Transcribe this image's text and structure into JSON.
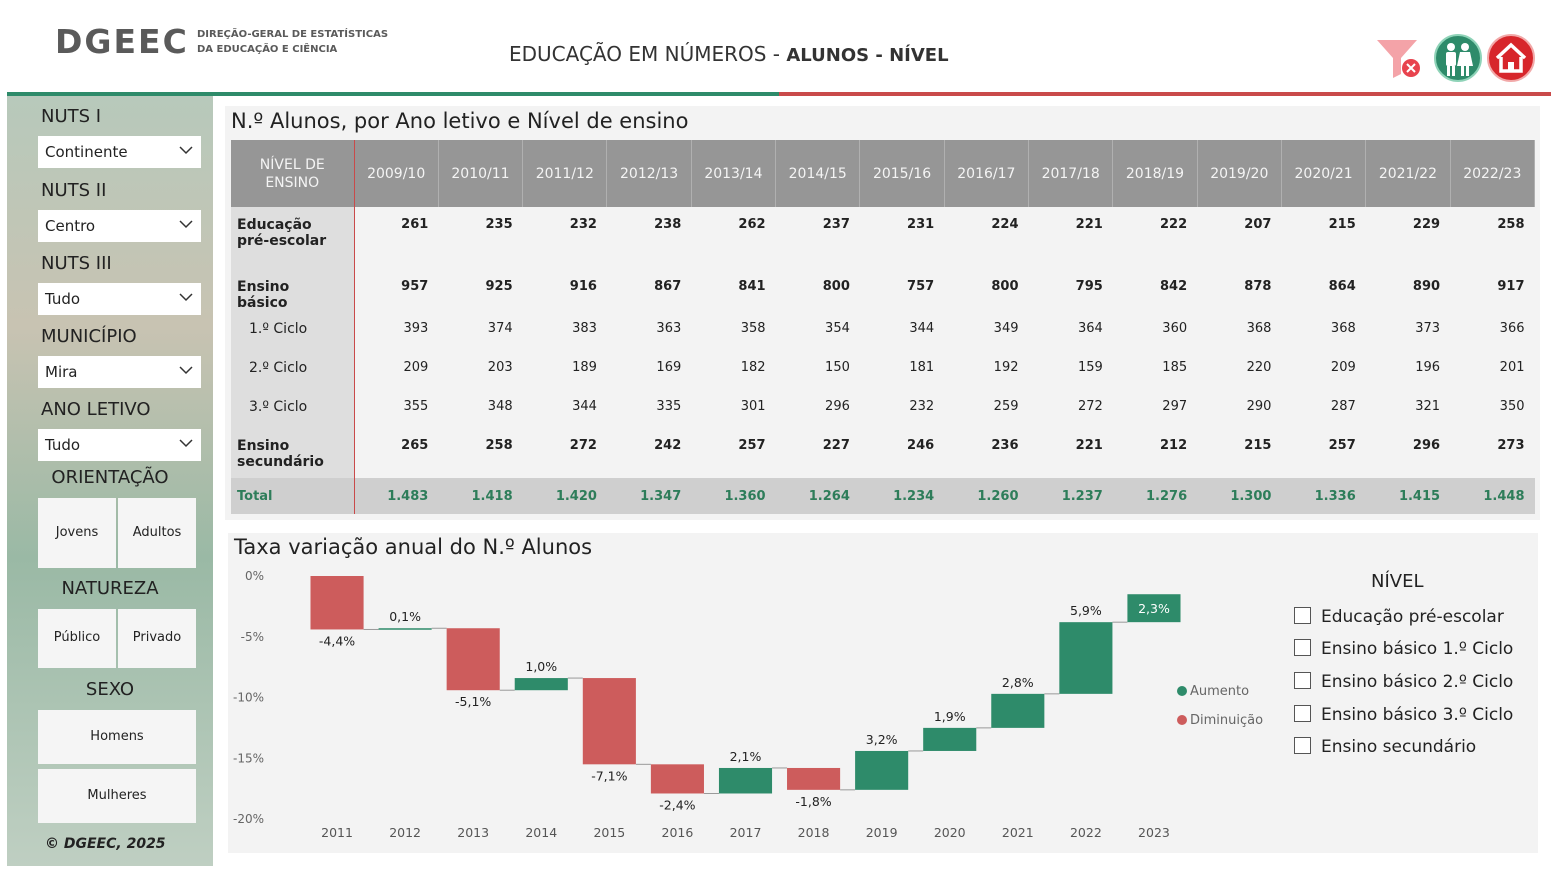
{
  "header": {
    "logo": "DGEEC",
    "logo_sub_1": "DIREÇÃO-GERAL DE ESTATÍSTICAS",
    "logo_sub_2": "DA EDUCAÇÃO E CIÊNCIA",
    "title_main": "EDUCAÇÃO EM NÚMEROS - ",
    "title_rest": "ALUNOS - NÍVEL"
  },
  "sidebar": {
    "nuts1_label": "NUTS I",
    "nuts1_value": "Continente",
    "nuts2_label": "NUTS II",
    "nuts2_value": "Centro",
    "nuts3_label": "NUTS III",
    "nuts3_value": "Tudo",
    "municipio_label": "MUNICÍPIO",
    "municipio_value": "Mira",
    "ano_label": "ANO LETIVO",
    "ano_value": "Tudo",
    "orientacao_label": "ORIENTAÇÃO",
    "orientacao_options": [
      "Jovens",
      "Adultos"
    ],
    "natureza_label": "NATUREZA",
    "natureza_options": [
      "Público",
      "Privado"
    ],
    "sexo_label": "SEXO",
    "sexo_options": [
      "Homens",
      "Mulheres"
    ],
    "copyright": "© DGEEC, 2025"
  },
  "table": {
    "title": "N.º Alunos, por Ano letivo e Nível de ensino",
    "corner_1": "NÍVEL DE",
    "corner_2": "ENSINO",
    "columns": [
      "2009/10",
      "2010/11",
      "2011/12",
      "2012/13",
      "2013/14",
      "2014/15",
      "2015/16",
      "2016/17",
      "2017/18",
      "2018/19",
      "2019/20",
      "2020/21",
      "2021/22",
      "2022/23"
    ],
    "rows": [
      {
        "label": "Educação pré-escolar",
        "style": "bold",
        "values": [
          "261",
          "235",
          "232",
          "238",
          "262",
          "237",
          "231",
          "224",
          "221",
          "222",
          "207",
          "215",
          "229",
          "258"
        ]
      },
      {
        "label": "Ensino básico",
        "style": "bold",
        "values": [
          "957",
          "925",
          "916",
          "867",
          "841",
          "800",
          "757",
          "800",
          "795",
          "842",
          "878",
          "864",
          "890",
          "917"
        ]
      },
      {
        "label": "1.º Ciclo",
        "style": "sub",
        "values": [
          "393",
          "374",
          "383",
          "363",
          "358",
          "354",
          "344",
          "349",
          "364",
          "360",
          "368",
          "368",
          "373",
          "366"
        ]
      },
      {
        "label": "2.º Ciclo",
        "style": "sub",
        "values": [
          "209",
          "203",
          "189",
          "169",
          "182",
          "150",
          "181",
          "192",
          "159",
          "185",
          "220",
          "209",
          "196",
          "201"
        ]
      },
      {
        "label": "3.º Ciclo",
        "style": "sub",
        "values": [
          "355",
          "348",
          "344",
          "335",
          "301",
          "296",
          "232",
          "259",
          "272",
          "297",
          "290",
          "287",
          "321",
          "350"
        ]
      },
      {
        "label": "Ensino secundário",
        "style": "bold",
        "values": [
          "265",
          "258",
          "272",
          "242",
          "257",
          "227",
          "246",
          "236",
          "221",
          "212",
          "215",
          "257",
          "296",
          "273"
        ]
      },
      {
        "label": "Total",
        "style": "total",
        "values": [
          "1.483",
          "1.418",
          "1.420",
          "1.347",
          "1.360",
          "1.264",
          "1.234",
          "1.260",
          "1.237",
          "1.276",
          "1.300",
          "1.336",
          "1.415",
          "1.448"
        ]
      }
    ]
  },
  "chart_data": {
    "type": "waterfall",
    "title": "Taxa variação anual do N.º Alunos",
    "categories": [
      "2011",
      "2012",
      "2013",
      "2014",
      "2015",
      "2016",
      "2017",
      "2018",
      "2019",
      "2020",
      "2021",
      "2022",
      "2023"
    ],
    "values": [
      -4.4,
      0.1,
      -5.1,
      1.0,
      -7.1,
      -2.4,
      2.1,
      -1.8,
      3.2,
      1.9,
      2.8,
      5.9,
      2.3
    ],
    "labels": [
      "-4,4%",
      "0,1%",
      "-5,1%",
      "1,0%",
      "-7,1%",
      "-2,4%",
      "2,1%",
      "-1,8%",
      "3,2%",
      "1,9%",
      "2,8%",
      "5,9%",
      "2,3%"
    ],
    "y_ticks": [
      "0%",
      "-5%",
      "-10%",
      "-15%",
      "-20%"
    ],
    "ylim": [
      -20,
      0
    ],
    "legend": [
      "Aumento",
      "Diminuição"
    ],
    "colors": {
      "increase": "#2e8b6a",
      "decrease": "#cd5c5c"
    }
  },
  "nivel": {
    "title": "NÍVEL",
    "options": [
      "Educação pré-escolar",
      "Ensino básico 1.º Ciclo",
      "Ensino básico 2.º Ciclo",
      "Ensino básico 3.º Ciclo",
      "Ensino secundário"
    ]
  }
}
